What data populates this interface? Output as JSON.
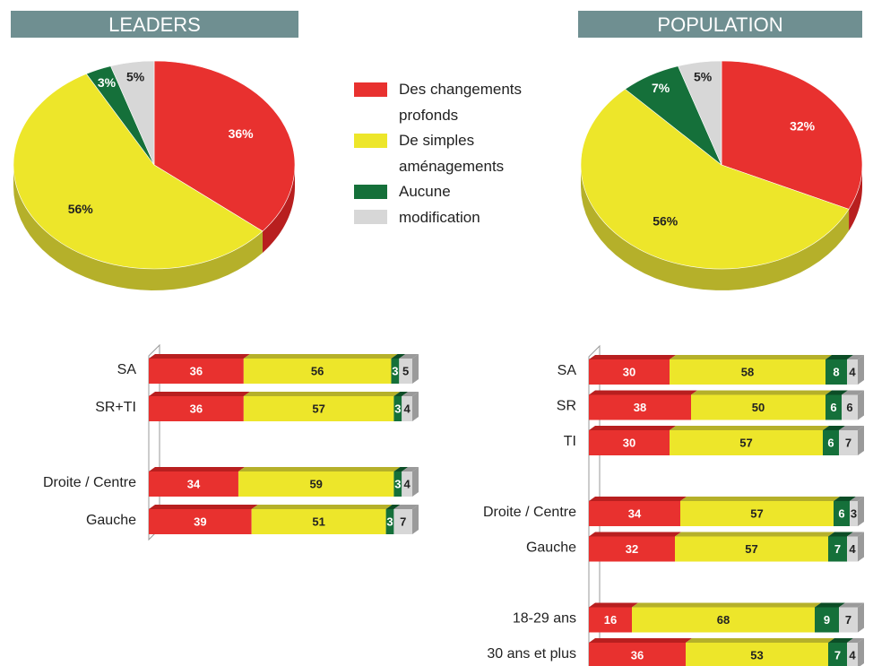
{
  "legend": {
    "labels": [
      "Des changements profonds",
      "De simples aménagements",
      "Aucune modification",
      null
    ],
    "colors": [
      "#e8312f",
      "#ede62a",
      "#15703a",
      "#d7d7d7"
    ],
    "shades": [
      "#b81f1f",
      "#b5b02a",
      "#0c4d26",
      "#9a9a9a"
    ]
  },
  "chart_data": [
    {
      "type": "pie",
      "title": "LEADERS",
      "values": [
        36,
        56,
        3,
        5
      ],
      "value_labels": [
        "36%",
        "56%",
        "3%",
        "5%"
      ]
    },
    {
      "type": "pie",
      "title": "POPULATION",
      "values": [
        32,
        56,
        7,
        5
      ],
      "value_labels": [
        "32%",
        "56%",
        "7%",
        "5%"
      ]
    },
    {
      "type": "bar",
      "orientation": "horizontal",
      "stacked": true,
      "xlim": [
        0,
        100
      ],
      "categories": [
        "SA",
        "SR+TI",
        null,
        "Droite / Centre",
        "Gauche"
      ],
      "series": [
        {
          "values": [
            36,
            36,
            null,
            34,
            39
          ]
        },
        {
          "values": [
            56,
            57,
            null,
            59,
            51
          ]
        },
        {
          "values": [
            3,
            3,
            null,
            3,
            3
          ]
        },
        {
          "values": [
            5,
            4,
            null,
            4,
            7
          ]
        }
      ]
    },
    {
      "type": "bar",
      "orientation": "horizontal",
      "stacked": true,
      "xlim": [
        0,
        100
      ],
      "categories": [
        "SA",
        "SR",
        "TI",
        null,
        "Droite / Centre",
        "Gauche",
        null,
        "18-29 ans",
        "30 ans et plus"
      ],
      "series": [
        {
          "values": [
            30,
            38,
            30,
            null,
            34,
            32,
            null,
            16,
            36
          ]
        },
        {
          "values": [
            58,
            50,
            57,
            null,
            57,
            57,
            null,
            68,
            53
          ]
        },
        {
          "values": [
            8,
            6,
            6,
            null,
            6,
            7,
            null,
            9,
            7
          ]
        },
        {
          "values": [
            4,
            6,
            7,
            null,
            3,
            4,
            null,
            7,
            4
          ]
        }
      ]
    }
  ]
}
